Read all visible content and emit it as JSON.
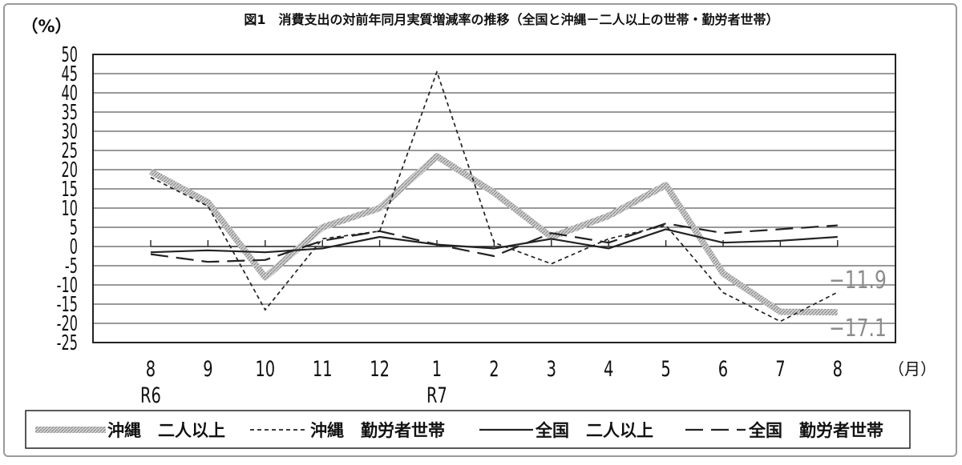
{
  "chart_data": {
    "type": "line",
    "title": "図1　消費支出の対前年同月実質増減率の推移（全国と沖縄－二人以上の世帯・勤労者世帯）",
    "ylabel": "（%）",
    "xunit": "（月）",
    "ylim": [
      -25,
      50
    ],
    "yticks": [
      50,
      45,
      40,
      35,
      30,
      25,
      20,
      15,
      10,
      5,
      0,
      -5,
      -10,
      -15,
      -20,
      -25
    ],
    "categories": [
      "8",
      "9",
      "10",
      "11",
      "12",
      "1",
      "2",
      "3",
      "4",
      "5",
      "6",
      "7",
      "8"
    ],
    "year_labels": [
      {
        "index": 0,
        "text": "R6"
      },
      {
        "index": 5,
        "text": "R7"
      }
    ],
    "grid": true,
    "legend_position": "bottom",
    "series": [
      {
        "name": "沖縄　二人以上",
        "style": "thick-gray-hatched",
        "color": "#b5b5b5",
        "values": [
          19.5,
          11.5,
          -8.0,
          5.0,
          10.0,
          23.5,
          14.0,
          2.5,
          8.0,
          16.0,
          -7.0,
          -17.0,
          -17.1
        ]
      },
      {
        "name": "沖縄　勤労者世帯",
        "style": "short-dash",
        "color": "#222222",
        "values": [
          18.0,
          10.5,
          -16.5,
          2.0,
          4.0,
          45.5,
          1.0,
          -4.5,
          2.0,
          5.5,
          -12.0,
          -19.5,
          -11.9
        ]
      },
      {
        "name": "全国　二人以上",
        "style": "solid",
        "color": "#222222",
        "values": [
          -1.5,
          -1.0,
          -1.5,
          -0.5,
          2.5,
          0.5,
          -0.5,
          2.0,
          -0.5,
          4.5,
          1.0,
          1.5,
          2.5
        ]
      },
      {
        "name": "全国　勤労者世帯",
        "style": "long-dash",
        "color": "#222222",
        "values": [
          -2.0,
          -4.0,
          -3.5,
          1.5,
          4.0,
          0.5,
          -2.5,
          3.5,
          1.0,
          6.0,
          3.5,
          4.5,
          5.5
        ]
      }
    ],
    "annotations": [
      {
        "text": "−11.9"
      },
      {
        "text": "−17.1"
      }
    ]
  }
}
